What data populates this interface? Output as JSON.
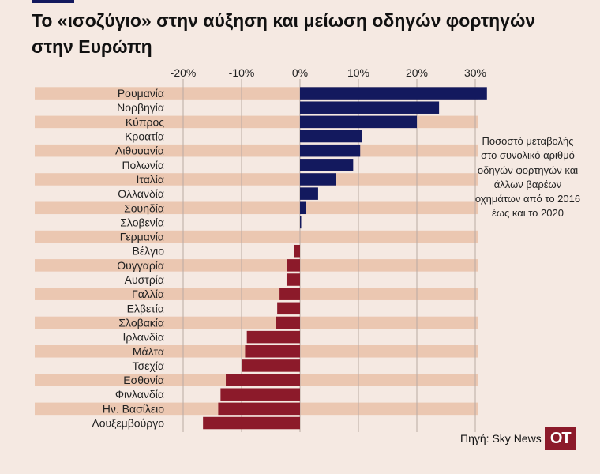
{
  "title": "Το «ισοζύγιο» στην αύξηση και μείωση οδηγών φορτηγών στην Ευρώπη",
  "note": "Ποσοστό μεταβολής στο συνολικό αριθμό οδηγών φορτηγών και άλλων βαρέων οχημάτων από το 2016 έως και το 2020",
  "source": "Πηγή: Sky News",
  "logo_text": "ΟΤ",
  "colors": {
    "background": "#f5e9e2",
    "stripe": "#ebc7b1",
    "positive": "#13195e",
    "negative": "#8c1a2a",
    "gridline": "#b9aaa2"
  },
  "chart_data": {
    "type": "bar",
    "orientation": "horizontal",
    "xlim": [
      -20,
      32
    ],
    "x_ticks": [
      -20,
      -10,
      0,
      10,
      20,
      30
    ],
    "x_tick_labels": [
      "-20%",
      "-10%",
      "0%",
      "10%",
      "20%",
      "30%"
    ],
    "categories": [
      "Ρουμανία",
      "Νορβηγία",
      "Κύπρος",
      "Κροατία",
      "Λιθουανία",
      "Πολωνία",
      "Ιταλία",
      "Ολλανδία",
      "Σουηδία",
      "Σλοβενία",
      "Γερμανία",
      "Βέλγιο",
      "Ουγγαρία",
      "Αυστρία",
      "Γαλλία",
      "Ελβετία",
      "Σλοβακία",
      "Ιρλανδία",
      "Μάλτα",
      "Τσεχία",
      "Εσθονία",
      "Φινλανδία",
      "Ην. Βασίλειο",
      "Λουξεμβούργο"
    ],
    "values": [
      32,
      23.8,
      20,
      10.6,
      10.3,
      9.1,
      6.2,
      3.1,
      1,
      0.2,
      0,
      -1,
      -2.2,
      -2.3,
      -3.5,
      -3.9,
      -4.1,
      -9.1,
      -9.4,
      -10,
      -12.7,
      -13.6,
      -14,
      -16.6
    ],
    "grid": true
  }
}
